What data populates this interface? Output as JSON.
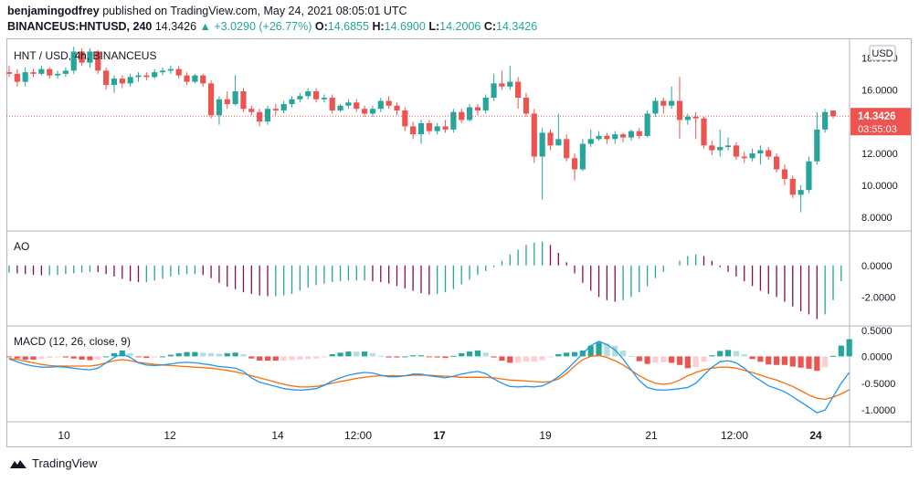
{
  "header": {
    "author": "benjamingodfrey",
    "published_text": "published on TradingView.com, May 24, 2021 08:05:01 UTC",
    "symbol": "BINANCEUS:HNTUSD, 240",
    "last": "14.3426",
    "change": "+3.0290 (+26.77%)",
    "o_label": "O:",
    "o_value": "14.6855",
    "h_label": "H:",
    "h_value": "14.6900",
    "l_label": "L:",
    "l_value": "14.2006",
    "c_label": "C:",
    "c_value": "14.3426"
  },
  "panes": {
    "price_title": "HNT / USD, 4h, BINANCEUS",
    "currency": "USD",
    "price_badge": "14.3426",
    "countdown": "03:55:03",
    "ao_title": "AO",
    "macd_title": "MACD (12, 26, close, 9)"
  },
  "footer": {
    "brand": "TradingView"
  },
  "colors": {
    "up": "#26a69a",
    "down": "#ef5350",
    "macd": "#2196f3",
    "signal": "#ff6d00",
    "ao_up": "#26a69a",
    "ao_down": "#880e4f",
    "hist_up_light": "#b2dfdb",
    "hist_down_light": "#ffcdd2"
  },
  "chart_data": [
    {
      "type": "candlestick",
      "title": "HNT / USD, 4h, BINANCEUS",
      "ylim": [
        7.3,
        19.0
      ],
      "y_ticks": [
        "18.0000",
        "16.0000",
        "14.0000",
        "12.0000",
        "10.0000",
        "8.0000"
      ],
      "x_ticks": [
        "10",
        "12",
        "14",
        "12:00",
        "17",
        "19",
        "21",
        "12:00",
        "24"
      ],
      "last_price": 14.3426,
      "candles": [
        [
          17.1,
          17.0,
          17.5,
          16.8
        ],
        [
          17.0,
          16.5,
          17.3,
          16.2
        ],
        [
          16.5,
          17.1,
          17.4,
          16.2
        ],
        [
          17.1,
          17.0,
          17.3,
          16.8
        ],
        [
          17.0,
          17.3,
          17.5,
          16.9
        ],
        [
          17.3,
          16.9,
          17.4,
          16.7
        ],
        [
          16.9,
          17.0,
          17.2,
          16.7
        ],
        [
          17.0,
          17.2,
          17.4,
          16.8
        ],
        [
          17.2,
          18.4,
          18.7,
          17.0
        ],
        [
          18.4,
          17.7,
          18.6,
          17.5
        ],
        [
          17.7,
          18.4,
          18.6,
          17.4
        ],
        [
          18.4,
          17.2,
          18.5,
          17.0
        ],
        [
          17.2,
          16.3,
          17.4,
          16.0
        ],
        [
          16.3,
          16.7,
          16.9,
          15.8
        ],
        [
          16.7,
          16.4,
          16.9,
          16.1
        ],
        [
          16.4,
          16.8,
          17.0,
          16.2
        ],
        [
          16.8,
          16.9,
          17.1,
          16.5
        ],
        [
          16.9,
          16.8,
          17.1,
          16.6
        ],
        [
          16.8,
          17.1,
          17.3,
          16.7
        ],
        [
          17.1,
          17.2,
          17.4,
          16.9
        ],
        [
          17.2,
          17.3,
          17.5,
          17.0
        ],
        [
          17.3,
          16.9,
          17.5,
          16.7
        ],
        [
          16.9,
          16.5,
          17.1,
          16.3
        ],
        [
          16.5,
          16.9,
          17.0,
          16.4
        ],
        [
          16.9,
          16.4,
          17.0,
          16.2
        ],
        [
          16.4,
          14.4,
          16.6,
          14.2
        ],
        [
          14.4,
          15.4,
          15.6,
          13.8
        ],
        [
          15.4,
          15.1,
          15.9,
          14.8
        ],
        [
          15.1,
          15.9,
          16.9,
          15.0
        ],
        [
          15.9,
          14.8,
          16.1,
          14.6
        ],
        [
          14.8,
          14.6,
          15.0,
          14.4
        ],
        [
          14.6,
          14.0,
          14.8,
          13.7
        ],
        [
          14.0,
          14.8,
          15.0,
          13.8
        ],
        [
          14.8,
          14.7,
          15.1,
          14.4
        ],
        [
          14.7,
          15.1,
          15.3,
          14.5
        ],
        [
          15.1,
          15.4,
          15.6,
          14.9
        ],
        [
          15.4,
          15.6,
          15.8,
          15.2
        ],
        [
          15.6,
          15.9,
          16.1,
          15.4
        ],
        [
          15.9,
          15.4,
          16.1,
          15.2
        ],
        [
          15.4,
          15.5,
          15.7,
          15.2
        ],
        [
          15.5,
          14.7,
          15.7,
          14.5
        ],
        [
          14.7,
          15.0,
          15.1,
          14.6
        ],
        [
          15.0,
          15.2,
          15.4,
          14.8
        ],
        [
          15.2,
          14.8,
          15.4,
          14.6
        ],
        [
          14.8,
          14.5,
          15.0,
          14.3
        ],
        [
          14.5,
          14.8,
          15.0,
          14.3
        ],
        [
          14.8,
          15.3,
          15.5,
          14.6
        ],
        [
          15.3,
          15.0,
          15.6,
          14.8
        ],
        [
          15.0,
          14.7,
          15.2,
          14.4
        ],
        [
          14.7,
          13.7,
          14.9,
          13.4
        ],
        [
          13.7,
          13.2,
          14.0,
          12.9
        ],
        [
          13.2,
          13.9,
          14.1,
          12.6
        ],
        [
          13.9,
          13.4,
          14.1,
          13.2
        ],
        [
          13.4,
          13.7,
          13.9,
          13.2
        ],
        [
          13.7,
          13.5,
          14.1,
          13.3
        ],
        [
          13.5,
          14.6,
          14.8,
          13.3
        ],
        [
          14.6,
          14.1,
          14.8,
          13.9
        ],
        [
          14.1,
          14.9,
          15.1,
          14.0
        ],
        [
          14.9,
          14.7,
          15.1,
          14.4
        ],
        [
          14.7,
          15.5,
          15.7,
          14.5
        ],
        [
          15.5,
          16.4,
          17.0,
          15.3
        ],
        [
          16.4,
          16.2,
          17.2,
          16.0
        ],
        [
          16.2,
          16.5,
          17.5,
          16.0
        ],
        [
          16.5,
          15.5,
          16.8,
          14.8
        ],
        [
          15.5,
          14.5,
          15.8,
          14.3
        ],
        [
          14.5,
          11.8,
          14.8,
          11.4
        ],
        [
          11.8,
          13.3,
          13.6,
          9.1
        ],
        [
          13.3,
          12.5,
          13.5,
          12.2
        ],
        [
          12.5,
          12.9,
          14.5,
          12.5
        ],
        [
          12.9,
          11.7,
          13.2,
          11.5
        ],
        [
          11.7,
          11.0,
          12.0,
          10.3
        ],
        [
          11.0,
          12.6,
          12.9,
          10.9
        ],
        [
          12.6,
          12.9,
          13.5,
          12.4
        ],
        [
          12.9,
          13.1,
          13.4,
          12.8
        ],
        [
          13.1,
          12.9,
          13.3,
          12.6
        ],
        [
          12.9,
          13.2,
          13.4,
          12.6
        ],
        [
          13.2,
          13.0,
          13.3,
          12.7
        ],
        [
          13.0,
          13.4,
          13.5,
          12.8
        ],
        [
          13.4,
          13.1,
          13.6,
          12.9
        ],
        [
          13.1,
          14.5,
          14.7,
          13.0
        ],
        [
          14.5,
          15.3,
          15.5,
          14.3
        ],
        [
          15.3,
          15.0,
          15.5,
          14.5
        ],
        [
          15.0,
          15.3,
          16.2,
          14.8
        ],
        [
          15.3,
          14.1,
          16.8,
          12.9
        ],
        [
          14.1,
          14.3,
          14.5,
          13.8
        ],
        [
          14.3,
          14.2,
          14.6,
          12.9
        ],
        [
          14.2,
          12.5,
          14.3,
          12.3
        ],
        [
          12.5,
          12.2,
          12.8,
          11.9
        ],
        [
          12.2,
          12.4,
          13.5,
          11.8
        ],
        [
          12.4,
          12.5,
          13.0,
          12.2
        ],
        [
          12.5,
          11.8,
          12.7,
          11.6
        ],
        [
          11.8,
          11.7,
          12.1,
          11.4
        ],
        [
          11.7,
          12.0,
          12.3,
          11.5
        ],
        [
          12.0,
          12.2,
          12.5,
          11.3
        ],
        [
          12.2,
          11.8,
          12.4,
          11.6
        ],
        [
          11.8,
          11.0,
          12.0,
          10.8
        ],
        [
          11.0,
          10.4,
          11.3,
          10.0
        ],
        [
          10.4,
          9.4,
          10.6,
          9.2
        ],
        [
          9.4,
          9.7,
          10.0,
          8.3
        ],
        [
          9.7,
          11.5,
          11.8,
          9.5
        ],
        [
          11.5,
          13.5,
          14.6,
          11.3
        ],
        [
          13.5,
          14.6,
          14.8,
          13.3
        ],
        [
          14.69,
          14.3426,
          14.69,
          14.2006
        ]
      ]
    },
    {
      "type": "bar",
      "title": "AO",
      "ylim": [
        -3.6,
        1.9
      ],
      "y_ticks": [
        "0.0000",
        "-2.0000"
      ],
      "values": [
        -0.45,
        -0.5,
        -0.55,
        -0.6,
        -0.62,
        -0.62,
        -0.6,
        -0.55,
        -0.5,
        -0.45,
        -0.4,
        -0.42,
        -0.55,
        -0.7,
        -0.85,
        -1.0,
        -1.05,
        -1.05,
        -0.95,
        -0.85,
        -0.7,
        -0.6,
        -0.55,
        -0.55,
        -0.6,
        -0.8,
        -1.1,
        -1.35,
        -1.5,
        -1.7,
        -1.8,
        -1.9,
        -1.95,
        -1.95,
        -1.9,
        -1.8,
        -1.6,
        -1.4,
        -1.25,
        -1.15,
        -1.05,
        -1.0,
        -0.95,
        -0.95,
        -0.95,
        -1.0,
        -1.05,
        -1.15,
        -1.3,
        -1.45,
        -1.6,
        -1.75,
        -1.85,
        -1.8,
        -1.7,
        -1.5,
        -1.2,
        -0.9,
        -0.6,
        -0.35,
        -0.1,
        0.3,
        0.7,
        1.0,
        1.3,
        1.45,
        1.5,
        1.3,
        0.8,
        0.2,
        -0.5,
        -1.1,
        -1.6,
        -2.0,
        -2.2,
        -2.3,
        -2.2,
        -2.0,
        -1.7,
        -1.3,
        -0.8,
        -0.4,
        0.0,
        0.3,
        0.6,
        0.7,
        0.6,
        0.3,
        -0.1,
        -0.4,
        -0.7,
        -1.0,
        -1.3,
        -1.6,
        -1.8,
        -2.0,
        -2.3,
        -2.6,
        -2.9,
        -3.1,
        -3.4,
        -3.1,
        -2.2,
        -1.0
      ]
    },
    {
      "type": "line",
      "title": "MACD (12, 26, close, 9)",
      "ylim": [
        -1.15,
        0.5
      ],
      "y_ticks": [
        "0.5000",
        "0.0000",
        "-0.5000",
        "-1.0000"
      ],
      "series": [
        {
          "values": [
            -0.05,
            -0.1,
            -0.15,
            -0.18,
            -0.2,
            -0.2,
            -0.19,
            -0.2,
            -0.22,
            -0.24,
            -0.25,
            -0.22,
            -0.12,
            -0.02,
            0.05,
            -0.02,
            -0.12,
            -0.16,
            -0.17,
            -0.16,
            -0.14,
            -0.12,
            -0.11,
            -0.12,
            -0.14,
            -0.16,
            -0.19,
            -0.2,
            -0.22,
            -0.28,
            -0.4,
            -0.48,
            -0.52,
            -0.56,
            -0.6,
            -0.62,
            -0.63,
            -0.62,
            -0.6,
            -0.54,
            -0.46,
            -0.4,
            -0.35,
            -0.32,
            -0.3,
            -0.31,
            -0.35,
            -0.38,
            -0.38,
            -0.36,
            -0.33,
            -0.33,
            -0.36,
            -0.38,
            -0.4,
            -0.37,
            -0.33,
            -0.3,
            -0.28,
            -0.32,
            -0.42,
            -0.5,
            -0.56,
            -0.57,
            -0.56,
            -0.57,
            -0.55,
            -0.48,
            -0.38,
            -0.25,
            -0.1,
            0.05,
            0.2,
            0.28,
            0.22,
            0.12,
            -0.05,
            -0.25,
            -0.45,
            -0.58,
            -0.62,
            -0.63,
            -0.62,
            -0.6,
            -0.58,
            -0.5,
            -0.35,
            -0.2,
            -0.1,
            -0.08,
            -0.12,
            -0.22,
            -0.35,
            -0.45,
            -0.55,
            -0.6,
            -0.66,
            -0.75,
            -0.85,
            -0.95,
            -1.05,
            -1.0,
            -0.75,
            -0.5,
            -0.3
          ]
        },
        {
          "values": [
            -0.04,
            -0.06,
            -0.09,
            -0.12,
            -0.15,
            -0.17,
            -0.18,
            -0.18,
            -0.18,
            -0.18,
            -0.18,
            -0.16,
            -0.12,
            -0.08,
            -0.06,
            -0.08,
            -0.11,
            -0.13,
            -0.15,
            -0.16,
            -0.17,
            -0.18,
            -0.19,
            -0.2,
            -0.21,
            -0.22,
            -0.24,
            -0.26,
            -0.29,
            -0.32,
            -0.36,
            -0.4,
            -0.44,
            -0.48,
            -0.52,
            -0.55,
            -0.57,
            -0.57,
            -0.56,
            -0.53,
            -0.5,
            -0.47,
            -0.44,
            -0.41,
            -0.39,
            -0.37,
            -0.36,
            -0.36,
            -0.36,
            -0.36,
            -0.35,
            -0.35,
            -0.35,
            -0.36,
            -0.37,
            -0.38,
            -0.39,
            -0.39,
            -0.39,
            -0.39,
            -0.4,
            -0.42,
            -0.44,
            -0.45,
            -0.46,
            -0.47,
            -0.48,
            -0.47,
            -0.42,
            -0.32,
            -0.18,
            -0.06,
            0.0,
            0.02,
            -0.02,
            -0.08,
            -0.16,
            -0.26,
            -0.36,
            -0.44,
            -0.5,
            -0.52,
            -0.5,
            -0.44,
            -0.36,
            -0.3,
            -0.25,
            -0.22,
            -0.2,
            -0.2,
            -0.22,
            -0.26,
            -0.3,
            -0.35,
            -0.4,
            -0.44,
            -0.5,
            -0.56,
            -0.64,
            -0.72,
            -0.78,
            -0.8,
            -0.76,
            -0.7,
            -0.62
          ]
        }
      ]
    }
  ]
}
